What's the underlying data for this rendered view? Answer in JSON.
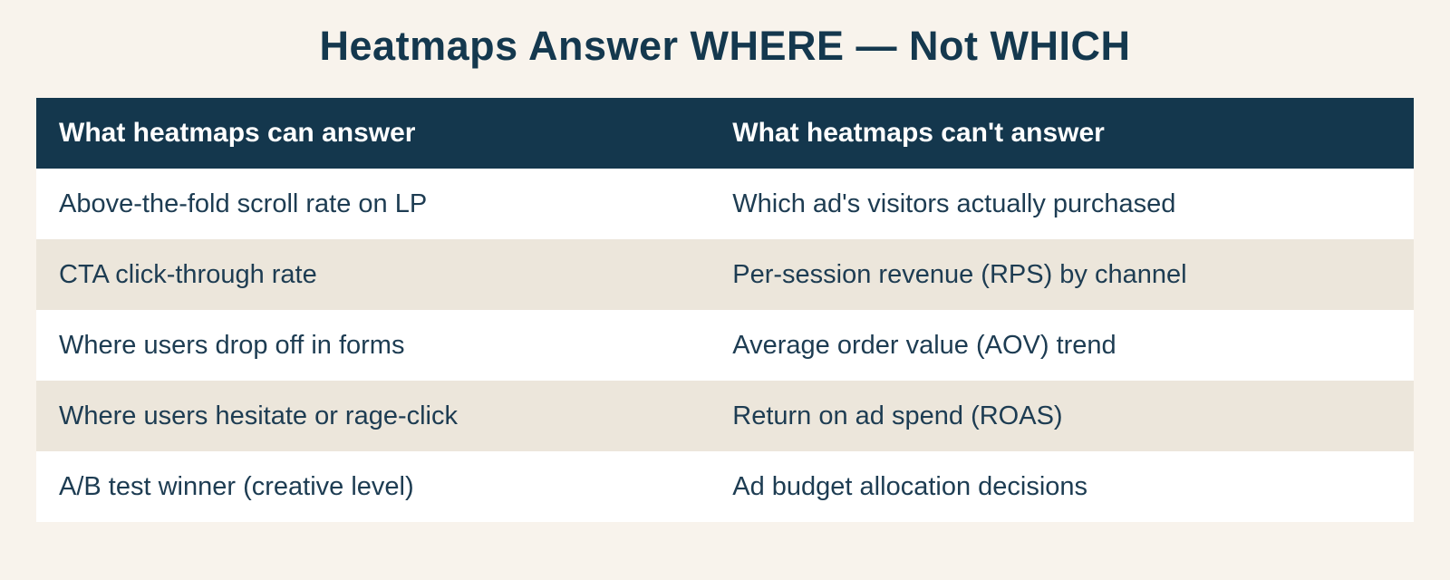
{
  "title": "Heatmaps Answer WHERE — Not WHICH",
  "table": {
    "columns": [
      {
        "label": "What heatmaps can answer"
      },
      {
        "label": "What heatmaps can't answer"
      }
    ],
    "rows": [
      [
        "Above-the-fold scroll rate on LP",
        "Which ad's visitors actually purchased"
      ],
      [
        "CTA click-through rate",
        "Per-session revenue (RPS) by channel"
      ],
      [
        "Where users drop off in forms",
        "Average order value (AOV) trend"
      ],
      [
        "Where users hesitate or rage-click",
        "Return on ad spend (ROAS)"
      ],
      [
        "A/B test winner (creative level)",
        "Ad budget allocation decisions"
      ]
    ]
  },
  "colors": {
    "page_background": "#f8f3ec",
    "header_background": "#14374d",
    "header_text": "#ffffff",
    "stripe_background": "#ece6db",
    "row_background": "#ffffff",
    "body_text": "#1d3c52",
    "title_text": "#14384e"
  }
}
